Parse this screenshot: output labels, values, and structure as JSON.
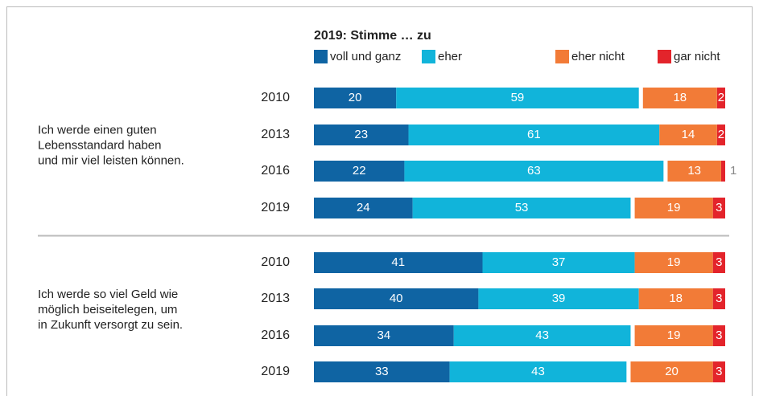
{
  "chart_data": {
    "type": "bar",
    "title": "2019: Stimme … zu",
    "series": [
      {
        "name": "voll und ganz",
        "color": "#0f64a3",
        "values": [
          [
            20,
            23,
            22,
            24
          ],
          [
            41,
            40,
            34,
            33
          ]
        ]
      },
      {
        "name": "eher",
        "color": "#11b4da",
        "values": [
          [
            59,
            61,
            63,
            53
          ],
          [
            37,
            39,
            43,
            43
          ]
        ]
      },
      {
        "name": "eher nicht",
        "color": "#f27b37",
        "negative": true,
        "values": [
          [
            18,
            14,
            13,
            19
          ],
          [
            19,
            18,
            19,
            20
          ]
        ]
      },
      {
        "name": "gar nicht",
        "color": "#e3242b",
        "negative": true,
        "values": [
          [
            2,
            2,
            1,
            3
          ],
          [
            3,
            3,
            3,
            3
          ]
        ]
      }
    ],
    "groups": [
      {
        "label": [
          "Ich werde einen guten",
          "Lebensstandard haben",
          "und mir viel leisten können."
        ],
        "categories": [
          "2010",
          "2013",
          "2016",
          "2019"
        ]
      },
      {
        "label": [
          "Ich werde so viel Geld wie",
          "möglich beiseitelegen, um",
          "in Zukunft versorgt zu sein."
        ],
        "categories": [
          "2010",
          "2013",
          "2016",
          "2019"
        ]
      }
    ],
    "xlim": [
      0,
      100
    ]
  }
}
